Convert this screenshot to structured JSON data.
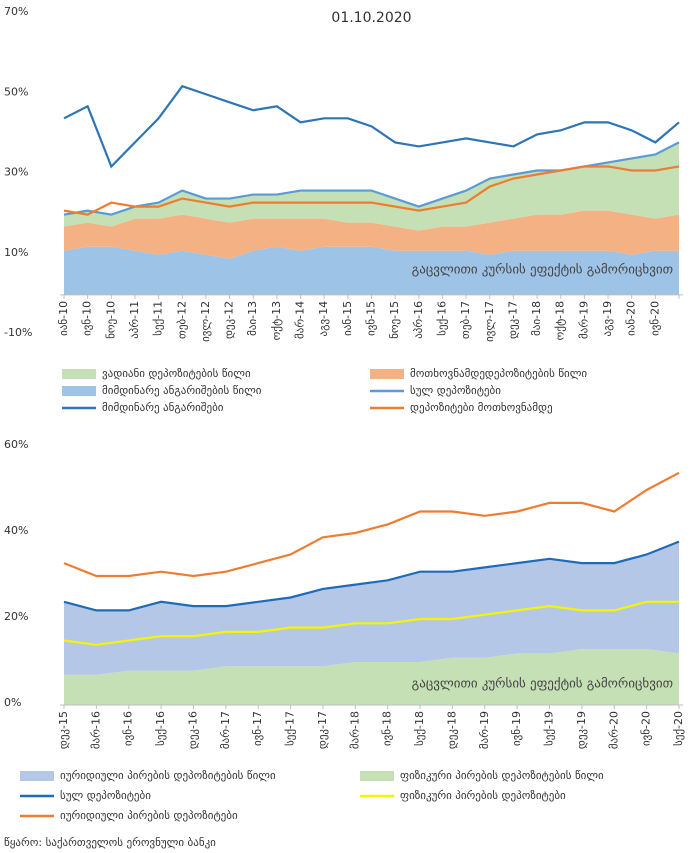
{
  "chart_data": [
    {
      "type": "area_line",
      "title": "01.10.2020",
      "annotation": "გაცვლითი კურსის ეფექტის გამორიცხვით",
      "categories": [
        "იან-10",
        "ივნ-10",
        "ნოე-10",
        "აპრ-11",
        "სექ-11",
        "თებ-12",
        "ივლ-12",
        "დეკ-12",
        "მაი-13",
        "ოქტ-13",
        "მარ-14",
        "აგვ-14",
        "იან-15",
        "ივნ-15",
        "ნოე-15",
        "აპრ-16",
        "სექ-16",
        "თებ-17",
        "ივლ-17",
        "დეკ-17",
        "მაი-18",
        "ოქტ-18",
        "მარ-19",
        "აგვ-19",
        "იან-20",
        "ივნ-20",
        null
      ],
      "ylim": [
        -10,
        70
      ],
      "yticks": [
        {
          "value": -10,
          "label": "-10%"
        },
        {
          "value": 10,
          "label": "10%"
        },
        {
          "value": 30,
          "label": "30%"
        },
        {
          "value": 50,
          "label": "50%"
        },
        {
          "value": 70,
          "label": "70%"
        }
      ],
      "series": [
        {
          "name": "ვადიანი დეპოზიტების წილი",
          "kind": "area",
          "color": "#c5e0b4",
          "values": [
            3,
            3,
            3,
            3,
            4,
            6,
            5,
            6,
            6,
            6,
            7,
            7,
            8,
            8,
            7,
            6,
            7,
            9,
            11,
            11,
            11,
            11,
            11,
            12,
            14,
            16,
            18
          ]
        },
        {
          "name": "მოთხოვნამდედეპოზიტების წილი",
          "kind": "area",
          "color": "#f4b183",
          "values": [
            6,
            6,
            5,
            8,
            9,
            9,
            9,
            9,
            8,
            7,
            8,
            7,
            6,
            6,
            6,
            5,
            6,
            6,
            8,
            8,
            9,
            9,
            10,
            10,
            10,
            8,
            9
          ]
        },
        {
          "name": "მიმდინარე ანგარიშების წილი",
          "kind": "area",
          "color": "#9dc3e6",
          "values": [
            11,
            12,
            12,
            11,
            10,
            11,
            10,
            9,
            11,
            12,
            11,
            12,
            12,
            12,
            11,
            11,
            11,
            11,
            10,
            11,
            11,
            11,
            11,
            11,
            10,
            11,
            11
          ]
        },
        {
          "name": "სულ დეპოზიტები",
          "kind": "line",
          "color": "#5b9bd5",
          "values": [
            20,
            21,
            20,
            22,
            23,
            26,
            24,
            24,
            25,
            25,
            26,
            26,
            26,
            26,
            24,
            22,
            24,
            26,
            29,
            30,
            31,
            31,
            32,
            33,
            34,
            35,
            38
          ]
        },
        {
          "name": "მიმდინარე ანგარიშები",
          "kind": "line",
          "color": "#2e75b6",
          "values": [
            44,
            47,
            32,
            38,
            44,
            52,
            50,
            48,
            46,
            47,
            43,
            44,
            44,
            42,
            38,
            37,
            38,
            39,
            38,
            37,
            40,
            41,
            43,
            43,
            41,
            38,
            43
          ]
        },
        {
          "name": "დეპოზიტები მოთხოვნამდე",
          "kind": "line",
          "color": "#ed7d31",
          "values": [
            21,
            20,
            23,
            22,
            22,
            24,
            23,
            22,
            23,
            23,
            23,
            23,
            23,
            23,
            22,
            21,
            22,
            23,
            27,
            29,
            30,
            31,
            32,
            32,
            31,
            31,
            32
          ]
        }
      ]
    },
    {
      "type": "area_line",
      "annotation": "გაცვლითი კურსის ეფექტის გამორიცხვით",
      "categories": [
        "დეკ-15",
        "მარ-16",
        "ივნ-16",
        "სექ-16",
        "დეკ-16",
        "მარ-17",
        "ივნ-17",
        "სექ-17",
        "დეკ-17",
        "მარ-18",
        "ივნ-18",
        "სექ-18",
        "დეკ-18",
        "მარ-19",
        "ივნ-19",
        "სექ-19",
        "დეკ-19",
        "მარ-20",
        "ივნ-20",
        "სექ-20"
      ],
      "ylim": [
        0,
        60
      ],
      "yticks": [
        {
          "value": 0,
          "label": "0%"
        },
        {
          "value": 20,
          "label": "20%"
        },
        {
          "value": 40,
          "label": "40%"
        },
        {
          "value": 60,
          "label": "60%"
        }
      ],
      "series": [
        {
          "name": "იურიდიული პირების დეპოზიტების წილი",
          "kind": "area",
          "color": "#b4c7e7",
          "values": [
            17,
            15,
            14,
            16,
            15,
            14,
            15,
            16,
            18,
            18,
            19,
            21,
            20,
            21,
            21,
            22,
            20,
            20,
            22,
            26
          ]
        },
        {
          "name": "ფიზიკური პირების დეპოზიტების წილი",
          "kind": "area",
          "color": "#c5e0b4",
          "values": [
            7,
            7,
            8,
            8,
            8,
            9,
            9,
            9,
            9,
            10,
            10,
            10,
            11,
            11,
            12,
            12,
            13,
            13,
            13,
            12
          ]
        },
        {
          "name": "სულ დეპოზიტები",
          "kind": "line",
          "color": "#1f6bb8",
          "values": [
            24,
            22,
            22,
            24,
            23,
            23,
            24,
            25,
            27,
            28,
            29,
            31,
            31,
            32,
            33,
            34,
            33,
            33,
            35,
            38
          ]
        },
        {
          "name": "ფიზიკური პირების დეპოზიტები",
          "kind": "line",
          "color": "#f5f500",
          "values": [
            15,
            14,
            15,
            16,
            16,
            17,
            17,
            18,
            18,
            19,
            19,
            20,
            20,
            21,
            22,
            23,
            22,
            22,
            24,
            24
          ]
        },
        {
          "name": "იურიდიული პირების დეპოზიტები",
          "kind": "line",
          "color": "#ed7d31",
          "values": [
            33,
            30,
            30,
            31,
            30,
            31,
            33,
            35,
            39,
            40,
            42,
            45,
            45,
            44,
            45,
            47,
            47,
            45,
            50,
            54
          ]
        }
      ]
    }
  ],
  "source": "წყარო: საქართველოს ეროვნული ბანკი"
}
